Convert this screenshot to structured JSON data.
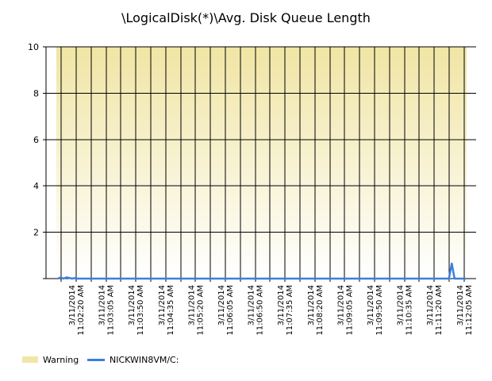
{
  "chart_data": {
    "type": "line",
    "title": "\\LogicalDisk(*)\\Avg. Disk Queue Length",
    "ylim": [
      0,
      10
    ],
    "y_ticks": [
      {
        "value": 0,
        "label": ""
      },
      {
        "value": 2,
        "label": "2"
      },
      {
        "value": 4,
        "label": "4"
      },
      {
        "value": 6,
        "label": "6"
      },
      {
        "value": 8,
        "label": "8"
      },
      {
        "value": 10,
        "label": "10"
      }
    ],
    "x_tick_labels": [
      "3/11/2014 11:02:20 AM",
      "3/11/2014 11:03:05 AM",
      "3/11/2014 11:03:50 AM",
      "3/11/2014 11:04:35 AM",
      "3/11/2014 11:05:20 AM",
      "3/11/2014 11:06:05 AM",
      "3/11/2014 11:06:50 AM",
      "3/11/2014 11:07:35 AM",
      "3/11/2014 11:08:20 AM",
      "3/11/2014 11:09:05 AM",
      "3/11/2014 11:09:50 AM",
      "3/11/2014 11:10:35 AM",
      "3/11/2014 11:11:20 AM",
      "3/11/2014 11:12:05 AM"
    ],
    "warning_band": {
      "name": "Warning",
      "range": [
        0,
        10
      ],
      "color": "#f1e6a8"
    },
    "series": [
      {
        "name": "NICKWIN8VM/C:",
        "color": "#3a7fe0",
        "values": [
          0,
          0.05,
          0,
          0.05,
          0.03,
          0,
          0.02,
          0,
          0,
          0,
          0,
          0,
          0,
          0,
          0,
          0,
          0,
          0,
          0,
          0,
          0,
          0,
          0,
          0,
          0,
          0,
          0,
          0,
          0,
          0,
          0,
          0,
          0,
          0,
          0,
          0,
          0,
          0,
          0,
          0,
          0,
          0,
          0,
          0,
          0,
          0,
          0,
          0,
          0,
          0,
          0,
          0,
          0,
          0,
          0,
          0,
          0,
          0,
          0,
          0,
          0,
          0,
          0,
          0,
          0,
          0,
          0,
          0,
          0,
          0,
          0,
          0,
          0,
          0,
          0,
          0,
          0,
          0,
          0,
          0,
          0,
          0,
          0,
          0,
          0,
          0,
          0,
          0,
          0,
          0,
          0,
          0,
          0,
          0,
          0,
          0,
          0,
          0,
          0,
          0,
          0,
          0,
          0,
          0,
          0,
          0,
          0,
          0,
          0,
          0,
          0,
          0,
          0,
          0,
          0,
          0,
          0,
          0,
          0,
          0,
          0,
          0,
          0,
          0,
          0,
          0,
          0,
          0,
          0,
          0,
          0,
          0,
          0,
          0,
          0,
          0,
          0,
          0,
          0,
          0,
          0.65,
          0,
          0,
          0,
          0,
          0
        ]
      }
    ],
    "grid": true,
    "legend_position": "bottom-left"
  }
}
